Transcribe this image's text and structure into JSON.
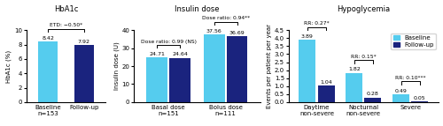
{
  "chart_data": [
    {
      "type": "bar",
      "title": "HbA1c",
      "categories": [
        "Baseline\nn=153",
        "Follow-up"
      ],
      "values": [
        8.42,
        7.92
      ],
      "colors": [
        "#55CCEE",
        "#1A237E"
      ],
      "ylabel": "HbA1c (%)",
      "ylim": [
        0,
        10
      ],
      "yticks": [
        0,
        2,
        4,
        6,
        8,
        10
      ],
      "data_labels": true,
      "annotations": [
        "ETD: −0.50*"
      ]
    },
    {
      "type": "bar",
      "title": "Insulin dose",
      "categories": [
        "Basal dose\nn=151",
        "Bolus dose\nn=111"
      ],
      "series": [
        {
          "name": "Baseline",
          "color": "#55CCEE",
          "values": [
            24.71,
            37.56
          ]
        },
        {
          "name": "Follow-up",
          "color": "#1A237E",
          "values": [
            24.64,
            36.69
          ]
        }
      ],
      "ylabel": "Insulin dose (U)",
      "ylim": [
        0,
        40
      ],
      "yticks": [
        0,
        10,
        20,
        30,
        40
      ],
      "data_labels": true,
      "annotations": [
        "Dose ratio: 0.99 (NS)",
        "Dose ratio: 0.94**"
      ]
    },
    {
      "type": "bar",
      "title": "Hypoglycemia",
      "categories": [
        "Daytime\nnon-severe",
        "Nocturnal\nnon-severe",
        "Severe"
      ],
      "series": [
        {
          "name": "Baseline",
          "color": "#55CCEE",
          "values": [
            3.89,
            1.82,
            0.49
          ]
        },
        {
          "name": "Follow-up",
          "color": "#1A237E",
          "values": [
            1.04,
            0.28,
            0.05
          ]
        }
      ],
      "ylabel": "Events per patient per year",
      "ylim": [
        0,
        4.5
      ],
      "yticks": [
        0.0,
        0.5,
        1.0,
        1.5,
        2.0,
        2.5,
        3.0,
        3.5,
        4.0,
        4.5
      ],
      "data_labels": true,
      "annotations": [
        "RR: 0.27*",
        "RR: 0.15*",
        "RR: 0.10***"
      ],
      "legend": "upper right"
    }
  ]
}
